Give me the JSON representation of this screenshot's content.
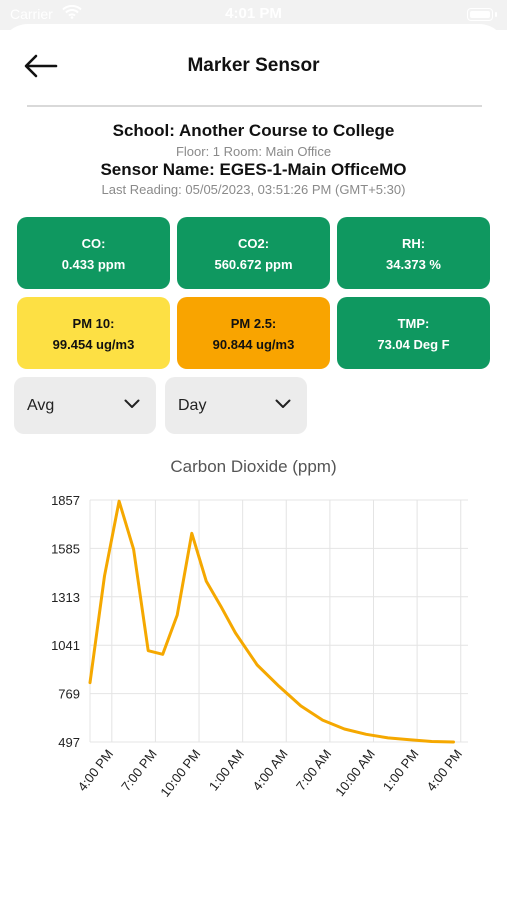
{
  "status_bar": {
    "carrier": "Carrier",
    "time": "4:01 PM"
  },
  "header": {
    "title": "Marker Sensor"
  },
  "info": {
    "school_line": "School: Another Course to College",
    "floor_line": "Floor: 1 Room: Main Office",
    "sensor_line": "Sensor Name: EGES-1-Main OfficeMO",
    "reading_line": "Last Reading: 05/05/2023, 03:51:26 PM (GMT+5:30)"
  },
  "readings": [
    {
      "label": "CO:",
      "value": "0.433 ppm",
      "status": "good"
    },
    {
      "label": "CO2:",
      "value": "560.672 ppm",
      "status": "good"
    },
    {
      "label": "RH:",
      "value": "34.373 %",
      "status": "good"
    },
    {
      "label": "PM 10:",
      "value": "99.454 ug/m3",
      "status": "moderate"
    },
    {
      "label": "PM 2.5:",
      "value": "90.844 ug/m3",
      "status": "unhealthy"
    },
    {
      "label": "TMP:",
      "value": "73.04 Deg F",
      "status": "good"
    }
  ],
  "filters": {
    "aggregate": "Avg",
    "range": "Day"
  },
  "colors": {
    "good": "#0f9860",
    "moderate": "#fde044",
    "unhealthy": "#f9a400",
    "line": "#f5a800"
  },
  "chart_data": {
    "type": "line",
    "title": "Carbon Dioxide (ppm)",
    "xlabel": "",
    "ylabel": "",
    "y_ticks": [
      497,
      769,
      1041,
      1313,
      1585,
      1857
    ],
    "ylim": [
      497,
      1857
    ],
    "x_ticks": [
      "4:00 PM",
      "7:00 PM",
      "10:00 PM",
      "1:00 AM",
      "4:00 AM",
      "7:00 AM",
      "10:00 AM",
      "1:00 PM",
      "4:00 PM"
    ],
    "x_tick_hours": [
      0,
      3,
      6,
      9,
      12,
      15,
      18,
      21,
      24
    ],
    "grid": true,
    "series": [
      {
        "x_hours": [
          -1.5,
          -0.5,
          0.5,
          1.5,
          2.5,
          3.5,
          4.5,
          5.5,
          6.5,
          7.5,
          8.5,
          10,
          11.5,
          13,
          14.5,
          16,
          17.5,
          19,
          20.5,
          22,
          23.5
        ],
        "values": [
          830,
          1430,
          1850,
          1580,
          1010,
          990,
          1210,
          1670,
          1400,
          1260,
          1110,
          930,
          810,
          700,
          620,
          570,
          540,
          520,
          510,
          500,
          497
        ]
      }
    ]
  }
}
